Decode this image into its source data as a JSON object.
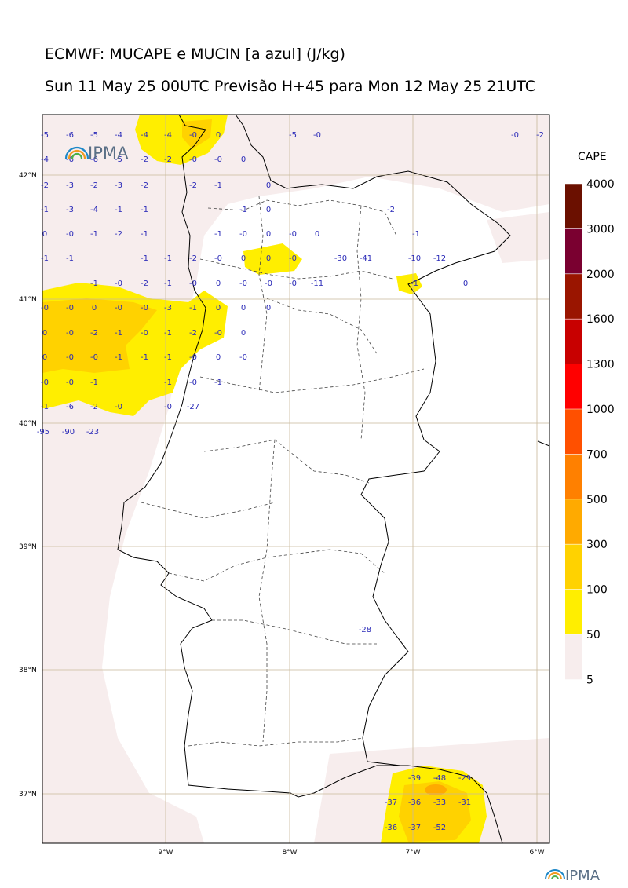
{
  "header": {
    "title_line1": "ECMWF: MUCAPE e MUCIN [a azul] (J/kg)",
    "title_line2": "Sun 11 May 25 00UTC Previsão H+45 para Mon 12 May 25 21UTC"
  },
  "logos": {
    "map_logo": "IPMA",
    "footer_logo": "IPMA"
  },
  "axes": {
    "lat_labels": [
      "42°N",
      "41°N",
      "40°N",
      "39°N",
      "38°N",
      "37°N"
    ],
    "lon_labels": [
      "9°W",
      "8°W",
      "7°W",
      "6°W"
    ]
  },
  "colorbar": {
    "title": "CAPE",
    "ticks": [
      "4000",
      "3000",
      "2000",
      "1600",
      "1300",
      "1000",
      "700",
      "500",
      "300",
      "100",
      "50",
      "5"
    ],
    "colors": [
      "#6b1000",
      "#7a0030",
      "#9a1500",
      "#c80000",
      "#ff0000",
      "#ff5000",
      "#ff8000",
      "#ffaa00",
      "#ffd200",
      "#ffee00",
      "#f7eded"
    ]
  },
  "colors": {
    "cin_label": "#2a2ab8",
    "low_cape": "#f7eded",
    "cape_50": "#ffee00",
    "cape_100": "#ffd200",
    "cape_300": "#ffaa00"
  },
  "cin_values": [
    "-5",
    "-6",
    "-5",
    "-4",
    "-4",
    "-4",
    "-0",
    "0",
    "-5",
    "-0",
    "-0",
    "-2",
    "-4",
    "-6",
    "-6",
    "-5",
    "-2",
    "-2",
    "-0",
    "-0",
    "0",
    "-2",
    "-3",
    "-2",
    "-3",
    "-2",
    "-2",
    "-1",
    "0",
    "-1",
    "-3",
    "-4",
    "-1",
    "-1",
    "-1",
    "0",
    "-2",
    "0",
    "-0",
    "-1",
    "-2",
    "-1",
    "-1",
    "-0",
    "0",
    "-0",
    "0",
    "-1",
    "-1",
    "-1",
    "-1",
    "-1",
    "-2",
    "-0",
    "0",
    "0",
    "-0",
    "-30",
    "-41",
    "-10",
    "-12",
    "-1",
    "-0",
    "-2",
    "-1",
    "-0",
    "0",
    "-0",
    "-0",
    "-0",
    "-11",
    "-1",
    "0",
    "-0",
    "-0",
    "0",
    "-0",
    "-0",
    "-3",
    "-1",
    "0",
    "0",
    "0",
    "0",
    "-0",
    "-2",
    "-1",
    "-0",
    "-1",
    "-2",
    "-0",
    "0",
    "0",
    "-0",
    "-0",
    "-1",
    "-1",
    "-1",
    "-0",
    "0",
    "-0",
    "-0",
    "-0",
    "-1",
    "-1",
    "-0",
    "-1",
    "-1",
    "-6",
    "-2",
    "-0",
    "-0",
    "-27",
    "-95",
    "-90",
    "-23",
    "-28",
    "-39",
    "-48",
    "-29",
    "-37",
    "-36",
    "-33",
    "-31",
    "-36",
    "-37",
    "-52"
  ]
}
